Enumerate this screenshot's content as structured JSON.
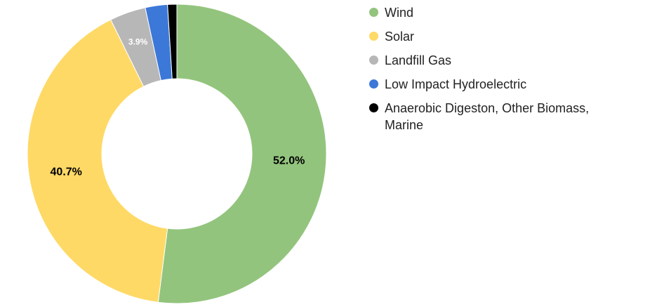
{
  "chart_data": {
    "type": "donut",
    "categories": [
      "Wind",
      "Solar",
      "Landfill Gas",
      "Low Impact Hydroelectric",
      "Anaerobic Digeston, Other Biomass, Marine"
    ],
    "values": [
      52.0,
      40.7,
      3.9,
      2.4,
      1.0
    ],
    "value_labels": [
      "52.0%",
      "40.7%",
      "3.9%",
      null,
      null
    ],
    "colors": [
      "#93c47d",
      "#ffd966",
      "#b7b7b7",
      "#3c78d8",
      "#000000"
    ],
    "legend": "right"
  }
}
